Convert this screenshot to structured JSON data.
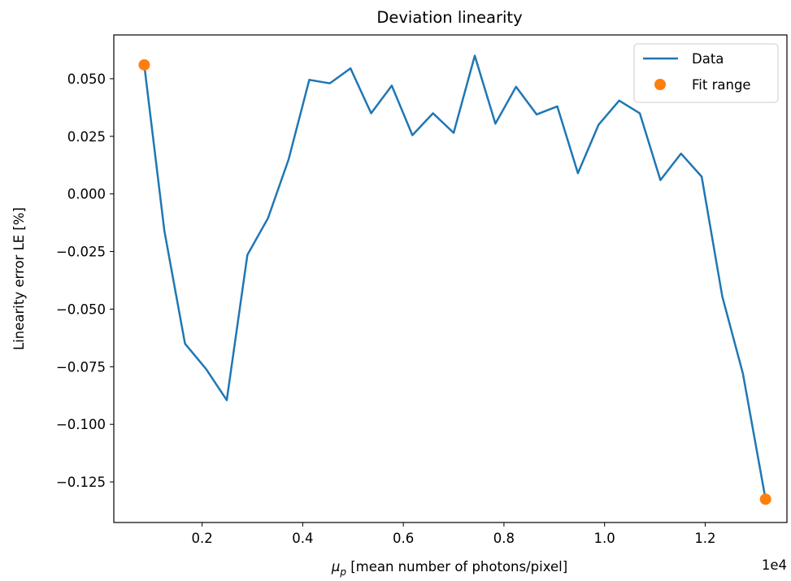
{
  "chart_data": {
    "type": "line",
    "title": "Deviation linearity",
    "xlabel_symbol": "μ",
    "xlabel_subscript": "p",
    "xlabel_rest": " [mean number of photons/pixel]",
    "x_offset_label": "1e4",
    "ylabel": "Linearity error LE [%]",
    "xlim": [
      0.0245,
      1.3625
    ],
    "ylim": [
      -0.1426,
      0.069
    ],
    "xticks": [
      0.2,
      0.4,
      0.6,
      0.8,
      1.0,
      1.2
    ],
    "xtick_labels": [
      "0.2",
      "0.4",
      "0.6",
      "0.8",
      "1.0",
      "1.2"
    ],
    "yticks": [
      0.05,
      0.025,
      0.0,
      -0.025,
      -0.05,
      -0.075,
      -0.1,
      -0.125
    ],
    "ytick_labels": [
      "0.050",
      "0.025",
      "0.000",
      "−0.025",
      "−0.050",
      "−0.075",
      "−0.100",
      "−0.125"
    ],
    "grid": false,
    "legend_position": "top-right",
    "colors": {
      "data": "#1f77b4",
      "fit": "#ff7f0e"
    },
    "series": [
      {
        "name": "Data",
        "style": "line",
        "x": [
          0.085,
          0.125,
          0.166,
          0.208,
          0.249,
          0.29,
          0.331,
          0.372,
          0.413,
          0.454,
          0.495,
          0.536,
          0.577,
          0.618,
          0.659,
          0.7,
          0.742,
          0.783,
          0.824,
          0.865,
          0.906,
          0.947,
          0.988,
          1.029,
          1.07,
          1.111,
          1.152,
          1.193,
          1.234,
          1.275,
          1.32
        ],
        "y": [
          0.056,
          -0.016,
          -0.065,
          -0.076,
          -0.0895,
          -0.0265,
          -0.0105,
          0.015,
          0.0495,
          0.048,
          0.0545,
          0.035,
          0.047,
          0.0255,
          0.035,
          0.0265,
          0.06,
          0.0305,
          0.0465,
          0.0345,
          0.038,
          0.009,
          0.03,
          0.0405,
          0.035,
          0.006,
          0.0175,
          0.0075,
          -0.0445,
          -0.078,
          -0.1325
        ]
      },
      {
        "name": "Fit range",
        "style": "points",
        "x": [
          0.085,
          1.32
        ],
        "y": [
          0.056,
          -0.1325
        ]
      }
    ]
  }
}
